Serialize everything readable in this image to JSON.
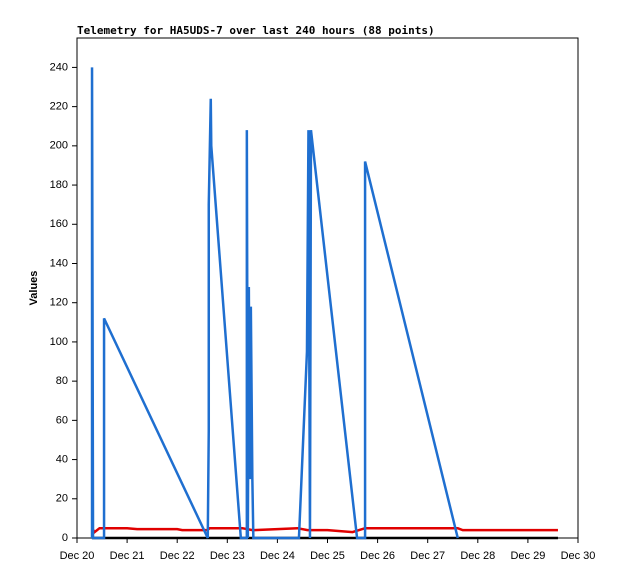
{
  "chart_data": {
    "type": "line",
    "title": "Telemetry for HA5UDS-7 over last 240 hours (88 points)",
    "y_label": "Values",
    "xlim": [
      20,
      30
    ],
    "ylim": [
      0,
      255
    ],
    "xticks": [
      {
        "value": 20,
        "label": "Dec 20"
      },
      {
        "value": 21,
        "label": "Dec 21"
      },
      {
        "value": 22,
        "label": "Dec 22"
      },
      {
        "value": 23,
        "label": "Dec 23"
      },
      {
        "value": 24,
        "label": "Dec 24"
      },
      {
        "value": 25,
        "label": "Dec 25"
      },
      {
        "value": 26,
        "label": "Dec 26"
      },
      {
        "value": 27,
        "label": "Dec 27"
      },
      {
        "value": 28,
        "label": "Dec 28"
      },
      {
        "value": 29,
        "label": "Dec 29"
      },
      {
        "value": 30,
        "label": "Dec 30"
      }
    ],
    "yticks": [
      0,
      20,
      40,
      60,
      80,
      100,
      120,
      140,
      160,
      180,
      200,
      220,
      240
    ],
    "series": [
      {
        "color": "#000000",
        "x": [
          20.3,
          29.6
        ],
        "values": [
          0,
          0
        ]
      },
      {
        "color": "#e00000",
        "x": [
          20.3,
          20.35,
          20.45,
          21.0,
          21.2,
          22.0,
          22.1,
          22.6,
          22.65,
          23.3,
          23.5,
          24.0,
          24.4,
          24.6,
          25.0,
          25.5,
          25.75,
          27.6,
          27.7,
          29.6
        ],
        "values": [
          5,
          3,
          5,
          5,
          4.5,
          4.5,
          4,
          4,
          5,
          5,
          4,
          4.5,
          5,
          4,
          4,
          3,
          5,
          5,
          4,
          4
        ]
      },
      {
        "color": "#1f6fd0",
        "x": [
          20.3,
          20.3,
          20.31,
          20.32,
          20.54,
          20.54,
          22.61,
          22.63,
          22.63,
          22.67,
          22.68,
          23.27,
          23.39,
          23.39,
          23.41,
          23.43,
          23.45,
          23.47,
          23.5,
          23.52,
          23.59,
          24.43,
          24.59,
          24.62,
          24.65,
          24.67,
          25.59,
          25.75,
          25.75,
          27.6
        ],
        "values": [
          0,
          240,
          120,
          0,
          0,
          112,
          0,
          55,
          170,
          224,
          200,
          0,
          0,
          208,
          0,
          128,
          30,
          118,
          30,
          0,
          0,
          0,
          95,
          208,
          0,
          208,
          0,
          0,
          192,
          0
        ]
      }
    ]
  }
}
